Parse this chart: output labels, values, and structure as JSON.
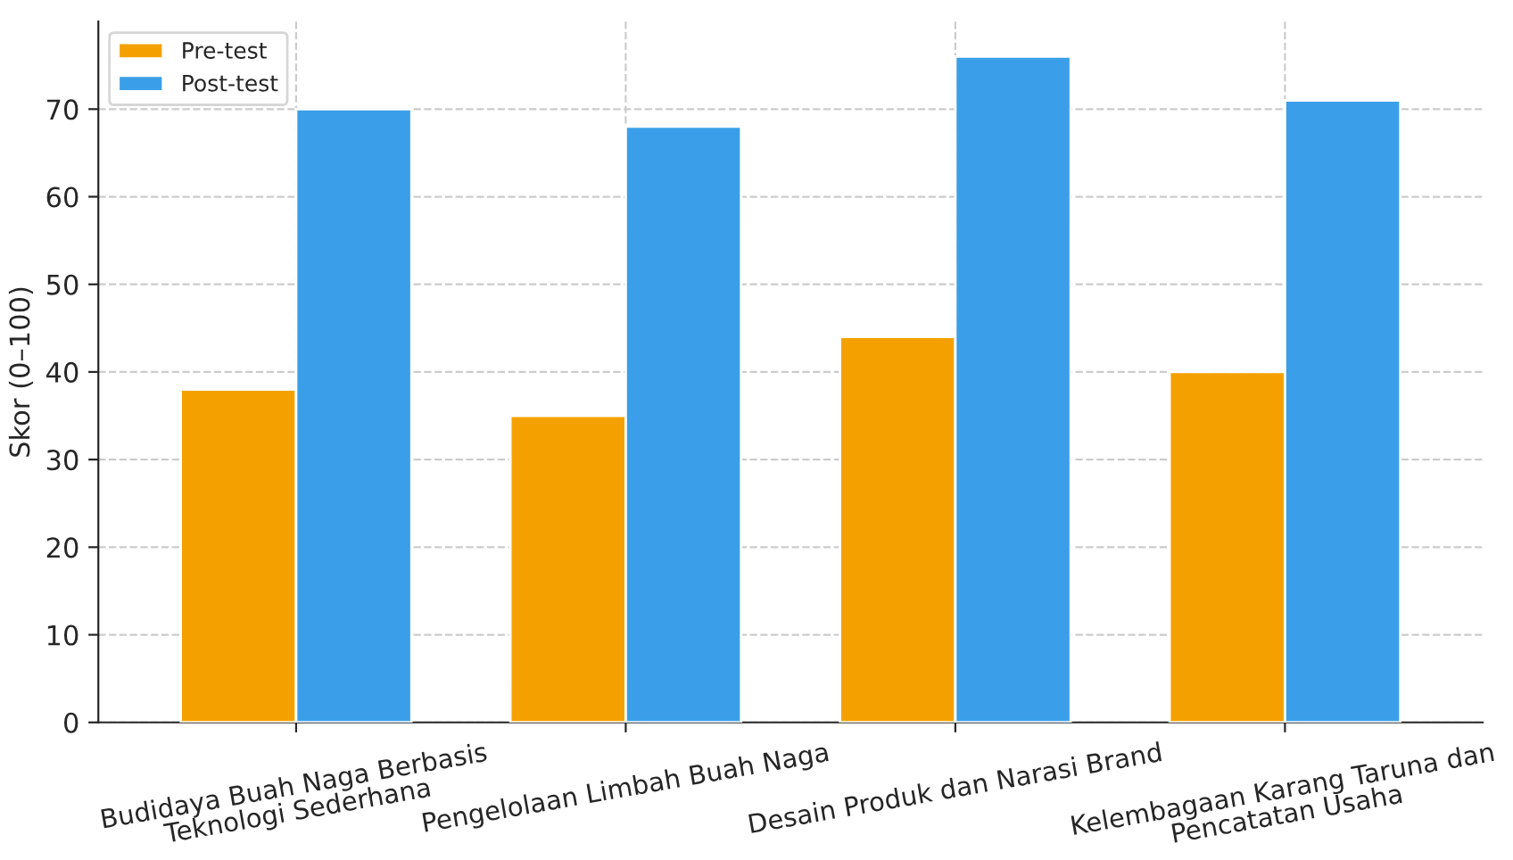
{
  "chart_data": {
    "type": "bar",
    "ylabel": "Skor (0–100)",
    "categories": [
      "Budidaya Buah Naga Berbasis\nTeknologi Sederhana",
      "Pengelolaan Limbah Buah Naga",
      "Desain Produk dan Narasi Brand",
      "Kelembagaan Karang Taruna dan\nPencatatan Usaha"
    ],
    "series": [
      {
        "name": "Pre-test",
        "color": "#f4a100",
        "values": [
          38,
          35,
          44,
          40
        ]
      },
      {
        "name": "Post-test",
        "color": "#3a9fe8",
        "values": [
          70,
          68,
          76,
          71
        ]
      }
    ],
    "ylim": [
      0,
      80
    ],
    "yticks": [
      0,
      10,
      20,
      30,
      40,
      50,
      60,
      70
    ],
    "grid": true,
    "legend": "top left"
  }
}
